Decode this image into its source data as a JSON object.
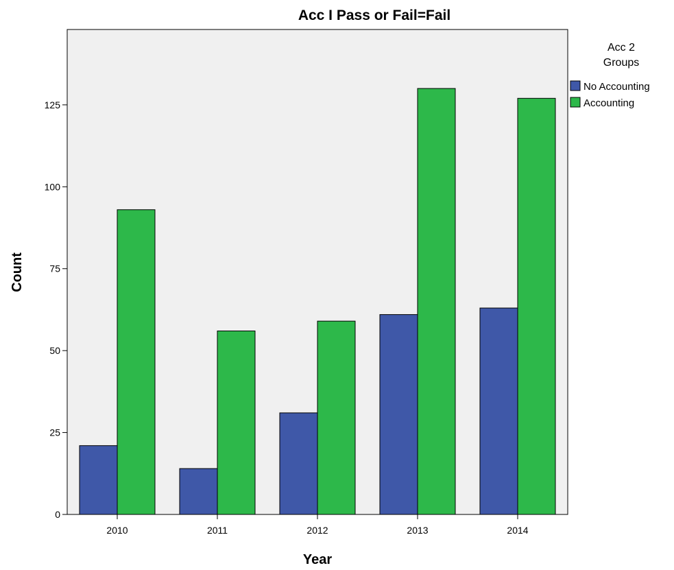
{
  "chart_data": {
    "type": "bar",
    "title": "Acc I Pass or Fail=Fail",
    "xlabel": "Year",
    "ylabel": "Count",
    "categories": [
      "2010",
      "2011",
      "2012",
      "2013",
      "2014"
    ],
    "series": [
      {
        "name": "No Accounting",
        "color": "#3f58a8",
        "values": [
          21,
          14,
          31,
          61,
          63
        ]
      },
      {
        "name": "Accounting",
        "color": "#2db84a",
        "values": [
          93,
          56,
          59,
          130,
          127
        ]
      }
    ],
    "yticks": [
      0,
      25,
      50,
      75,
      100,
      125
    ],
    "ylim": [
      0,
      148
    ],
    "grid": false,
    "legend": {
      "title_lines": [
        "Acc 2",
        "Groups"
      ],
      "placement": "right-top"
    },
    "plot_background": "#f0f0f0"
  }
}
